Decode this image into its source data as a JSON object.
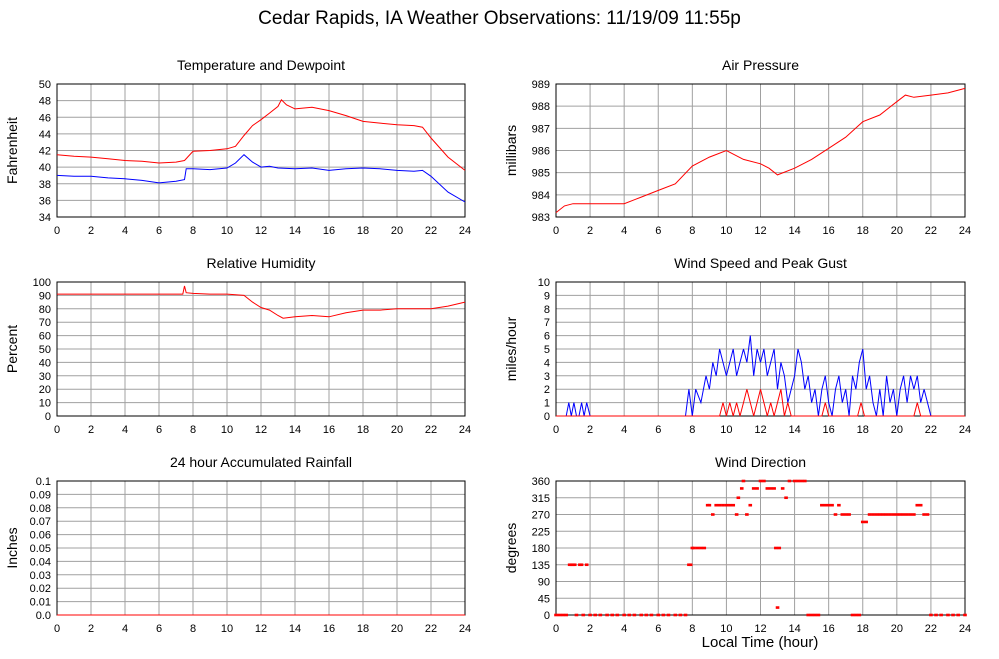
{
  "title": "Cedar Rapids, IA Weather Observations: 11/19/09 11:55p",
  "xlabel_shared": "Local Time (hour)",
  "colors": {
    "series_red": "#ff0000",
    "series_blue": "#0000ff",
    "grid": "#a0a0a0"
  },
  "chart_data": [
    {
      "id": "temp",
      "type": "line",
      "title": "Temperature and Dewpoint",
      "ylabel": "Fahrenheit",
      "xlabel": "",
      "xlim": [
        0,
        24
      ],
      "ylim": [
        34,
        50
      ],
      "xticks": [
        "0",
        "2",
        "4",
        "6",
        "8",
        "10",
        "12",
        "14",
        "16",
        "18",
        "20",
        "22",
        "24"
      ],
      "yticks": [
        "34",
        "36",
        "38",
        "40",
        "42",
        "44",
        "46",
        "48",
        "50"
      ],
      "grid": true,
      "series": [
        {
          "color": "#ff0000",
          "x": [
            0,
            1,
            2,
            3,
            4,
            5,
            6,
            7,
            7.5,
            8,
            9,
            10,
            10.5,
            11,
            11.5,
            12,
            12.5,
            13,
            13.2,
            13.5,
            14,
            15,
            16,
            17,
            18,
            19,
            20,
            21,
            21.5,
            22,
            23,
            24
          ],
          "y": [
            41.5,
            41.3,
            41.2,
            41,
            40.8,
            40.7,
            40.5,
            40.6,
            40.8,
            41.9,
            42,
            42.2,
            42.5,
            43.8,
            45,
            45.7,
            46.5,
            47.3,
            48.1,
            47.5,
            47,
            47.2,
            46.8,
            46.2,
            45.5,
            45.3,
            45.1,
            45,
            44.8,
            43.5,
            41.2,
            39.6
          ]
        },
        {
          "color": "#0000ff",
          "x": [
            0,
            1,
            2,
            3,
            4,
            5,
            6,
            7,
            7.5,
            7.6,
            8,
            9,
            10,
            10.5,
            11,
            11.5,
            12,
            12.5,
            13,
            14,
            15,
            16,
            17,
            18,
            19,
            20,
            21,
            21.5,
            22,
            23,
            24
          ],
          "y": [
            39,
            38.9,
            38.9,
            38.7,
            38.6,
            38.4,
            38.1,
            38.3,
            38.5,
            39.8,
            39.8,
            39.7,
            39.9,
            40.5,
            41.5,
            40.6,
            40,
            40.1,
            39.9,
            39.8,
            39.9,
            39.6,
            39.8,
            39.9,
            39.8,
            39.6,
            39.5,
            39.6,
            38.9,
            37,
            35.8
          ]
        }
      ]
    },
    {
      "id": "pressure",
      "type": "line",
      "title": "Air Pressure",
      "ylabel": "millibars",
      "xlabel": "",
      "xlim": [
        0,
        24
      ],
      "ylim": [
        983,
        989
      ],
      "xticks": [
        "0",
        "2",
        "4",
        "6",
        "8",
        "10",
        "12",
        "14",
        "16",
        "18",
        "20",
        "22",
        "24"
      ],
      "yticks": [
        "983",
        "984",
        "985",
        "986",
        "987",
        "988",
        "989"
      ],
      "grid": true,
      "series": [
        {
          "color": "#ff0000",
          "x": [
            0,
            0.5,
            1,
            2,
            3,
            4,
            5,
            6,
            7,
            8,
            9,
            10,
            11,
            12,
            12.5,
            13,
            14,
            15,
            16,
            17,
            18,
            19,
            20,
            20.5,
            21,
            22,
            23,
            24
          ],
          "y": [
            983.2,
            983.5,
            983.6,
            983.6,
            983.6,
            983.6,
            983.9,
            984.2,
            984.5,
            985.3,
            985.7,
            986,
            985.6,
            985.4,
            985.2,
            984.9,
            985.2,
            985.6,
            986.1,
            986.6,
            987.3,
            987.6,
            988.2,
            988.5,
            988.4,
            988.5,
            988.6,
            988.8
          ]
        }
      ]
    },
    {
      "id": "humidity",
      "type": "line",
      "title": "Relative Humidity",
      "ylabel": "Percent",
      "xlabel": "",
      "xlim": [
        0,
        24
      ],
      "ylim": [
        0,
        100
      ],
      "xticks": [
        "0",
        "2",
        "4",
        "6",
        "8",
        "10",
        "12",
        "14",
        "16",
        "18",
        "20",
        "22",
        "24"
      ],
      "yticks": [
        "0",
        "10",
        "20",
        "30",
        "40",
        "50",
        "60",
        "70",
        "80",
        "90",
        "100"
      ],
      "grid": true,
      "series": [
        {
          "color": "#ff0000",
          "x": [
            0,
            2,
            4,
            6,
            7,
            7.4,
            7.5,
            7.6,
            8,
            9,
            10,
            11,
            11.5,
            12,
            12.5,
            13,
            13.3,
            14,
            15,
            16,
            17,
            18,
            19,
            20,
            21,
            22,
            23,
            24
          ],
          "y": [
            91,
            91,
            91,
            91,
            91,
            91,
            97,
            92,
            91.5,
            91,
            91,
            90,
            85,
            81,
            79,
            75,
            73,
            74,
            75,
            74,
            77,
            79,
            79,
            80,
            80,
            80,
            82,
            85
          ]
        }
      ]
    },
    {
      "id": "wind",
      "type": "line",
      "title": "Wind Speed and Peak Gust",
      "ylabel": "miles/hour",
      "xlabel": "",
      "xlim": [
        0,
        24
      ],
      "ylim": [
        0,
        10
      ],
      "xticks": [
        "0",
        "2",
        "4",
        "6",
        "8",
        "10",
        "12",
        "14",
        "16",
        "18",
        "20",
        "22",
        "24"
      ],
      "yticks": [
        "0",
        "1",
        "2",
        "3",
        "4",
        "5",
        "6",
        "7",
        "8",
        "9",
        "10"
      ],
      "grid": true,
      "series": [
        {
          "color": "#0000ff",
          "x": [
            0,
            0.6,
            0.75,
            0.9,
            1.05,
            1.2,
            1.35,
            1.5,
            1.65,
            1.8,
            2,
            7.6,
            7.8,
            8,
            8.2,
            8.5,
            8.8,
            9,
            9.2,
            9.4,
            9.6,
            9.8,
            10,
            10.2,
            10.4,
            10.6,
            10.8,
            11,
            11.2,
            11.4,
            11.6,
            11.8,
            12,
            12.2,
            12.4,
            12.6,
            12.8,
            13,
            13.2,
            13.4,
            13.6,
            13.8,
            14,
            14.2,
            14.4,
            14.6,
            14.8,
            15,
            15.2,
            15.4,
            15.6,
            15.8,
            16,
            16.2,
            16.4,
            16.6,
            16.8,
            17,
            17.2,
            17.4,
            17.6,
            17.8,
            18,
            18.2,
            18.4,
            18.6,
            18.8,
            19,
            19.2,
            19.4,
            19.6,
            19.8,
            20,
            20.2,
            20.4,
            20.6,
            20.8,
            21,
            21.2,
            21.4,
            21.6,
            21.8,
            22,
            24
          ],
          "y": [
            0,
            0,
            1,
            0,
            1,
            0,
            0,
            1,
            0,
            1,
            0,
            0,
            2,
            0,
            2,
            1,
            3,
            2,
            4,
            3,
            5,
            4,
            3,
            4,
            5,
            3,
            4,
            5,
            4,
            6,
            3,
            5,
            4,
            5,
            3,
            4,
            5,
            2,
            4,
            3,
            1,
            2,
            3,
            5,
            4,
            2,
            3,
            1,
            2,
            0,
            2,
            3,
            1,
            0,
            2,
            3,
            1,
            2,
            0,
            3,
            2,
            4,
            5,
            2,
            3,
            1,
            0,
            2,
            0,
            3,
            1,
            2,
            0,
            2,
            3,
            1,
            3,
            2,
            3,
            1,
            2,
            1,
            0,
            0
          ]
        },
        {
          "color": "#ff0000",
          "x": [
            0,
            9.6,
            9.8,
            10,
            10.2,
            10.4,
            10.6,
            10.8,
            11,
            11.2,
            11.4,
            11.6,
            11.8,
            12,
            12.2,
            12.4,
            12.6,
            12.8,
            13,
            13.2,
            13.4,
            13.6,
            13.8,
            14,
            15.6,
            15.8,
            16,
            17.7,
            17.9,
            18.1,
            21,
            21.2,
            21.4,
            24
          ],
          "y": [
            0,
            0,
            1,
            0,
            1,
            0,
            1,
            0,
            1,
            2,
            1,
            0,
            1,
            2,
            1,
            0,
            1,
            0,
            1,
            2,
            0,
            1,
            0,
            0,
            0,
            1,
            0,
            0,
            1,
            0,
            0,
            1,
            0,
            0
          ]
        }
      ]
    },
    {
      "id": "rain",
      "type": "line",
      "title": "24 hour Accumulated Rainfall",
      "ylabel": "Inches",
      "xlabel": "",
      "xlim": [
        0,
        24
      ],
      "ylim": [
        0,
        0.1
      ],
      "xticks": [
        "0",
        "2",
        "4",
        "6",
        "8",
        "10",
        "12",
        "14",
        "16",
        "18",
        "20",
        "22",
        "24"
      ],
      "yticks": [
        "0.0",
        "0.01",
        "0.02",
        "0.03",
        "0.04",
        "0.05",
        "0.06",
        "0.07",
        "0.08",
        "0.09",
        "0.1"
      ],
      "grid": true,
      "series": [
        {
          "color": "#ff0000",
          "x": [
            0,
            24
          ],
          "y": [
            0,
            0
          ]
        }
      ]
    },
    {
      "id": "winddir",
      "type": "scatter",
      "title": "Wind Direction",
      "ylabel": "degrees",
      "xlabel": "Local Time (hour)",
      "xlim": [
        0,
        24
      ],
      "ylim": [
        0,
        360
      ],
      "xticks": [
        "0",
        "2",
        "4",
        "6",
        "8",
        "10",
        "12",
        "14",
        "16",
        "18",
        "20",
        "22",
        "24"
      ],
      "yticks": [
        "0",
        "45",
        "90",
        "135",
        "180",
        "225",
        "270",
        "315",
        "360"
      ],
      "grid": true,
      "series": [
        {
          "color": "#ff0000",
          "x": [
            0,
            0.2,
            0.4,
            0.6,
            0.8,
            0.9,
            1.0,
            1.1,
            1.2,
            1.4,
            1.5,
            1.6,
            1.8,
            2,
            2.3,
            2.6,
            3,
            3.3,
            3.6,
            4,
            4.3,
            4.6,
            5,
            5.3,
            5.6,
            6,
            6.3,
            6.6,
            7,
            7.3,
            7.6,
            7.8,
            7.9,
            8.0,
            8.1,
            8.3,
            8.5,
            8.7,
            8.9,
            9,
            9.2,
            9.4,
            9.6,
            9.8,
            10.0,
            10.2,
            10.4,
            10.6,
            10.7,
            10.9,
            11.0,
            11.2,
            11.4,
            11.6,
            11.8,
            12,
            12.2,
            12.4,
            12.6,
            12.8,
            12.9,
            13.0,
            13.1,
            13.3,
            13.5,
            13.7,
            14,
            14.2,
            14.4,
            14.6,
            14.8,
            15,
            15.2,
            15.4,
            15.6,
            15.8,
            16,
            16.2,
            16.4,
            16.6,
            16.8,
            17,
            17.2,
            17.4,
            17.6,
            17.8,
            18,
            18.2,
            18.4,
            18.6,
            18.8,
            19,
            19.2,
            19.4,
            19.6,
            19.8,
            20,
            20.2,
            20.4,
            20.6,
            20.8,
            21,
            21.2,
            21.4,
            21.6,
            21.8,
            22,
            22.3,
            22.6,
            23,
            23.3,
            23.6,
            24
          ],
          "y": [
            0,
            0,
            0,
            0,
            135,
            135,
            135,
            135,
            0,
            135,
            135,
            0,
            135,
            0,
            0,
            0,
            0,
            0,
            0,
            0,
            0,
            0,
            0,
            0,
            0,
            0,
            0,
            0,
            0,
            0,
            0,
            135,
            135,
            180,
            180,
            180,
            180,
            180,
            295,
            295,
            270,
            295,
            295,
            295,
            295,
            295,
            295,
            270,
            315,
            340,
            360,
            270,
            295,
            340,
            340,
            360,
            360,
            340,
            340,
            340,
            180,
            20,
            180,
            340,
            315,
            360,
            360,
            360,
            360,
            360,
            0,
            0,
            0,
            0,
            295,
            295,
            295,
            295,
            270,
            295,
            270,
            270,
            270,
            0,
            0,
            0,
            250,
            250,
            270,
            270,
            270,
            270,
            270,
            270,
            270,
            270,
            270,
            270,
            270,
            270,
            270,
            270,
            295,
            295,
            270,
            270,
            0,
            0,
            0,
            0,
            0,
            0,
            0
          ]
        }
      ]
    }
  ]
}
